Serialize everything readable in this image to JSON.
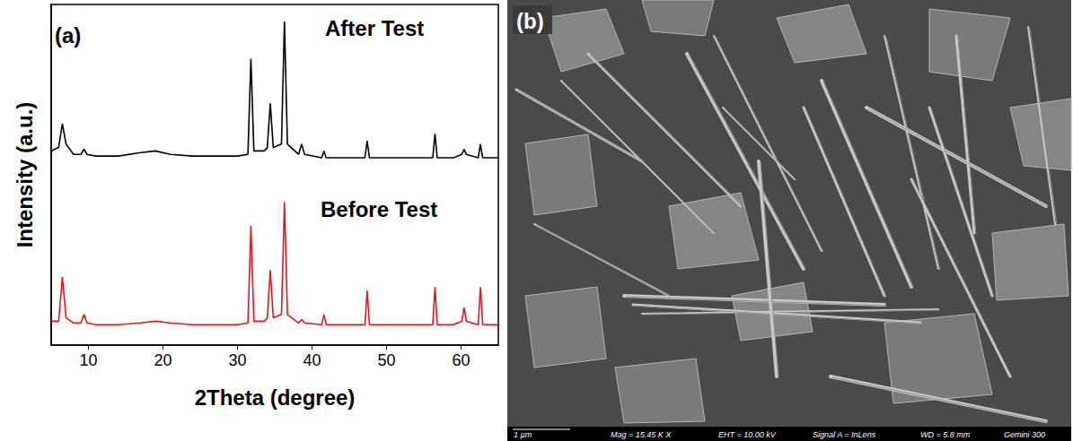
{
  "chart_data": {
    "type": "line",
    "panel_label": "(a)",
    "xlabel": "2Theta (degree)",
    "ylabel": "Intensity (a.u.)",
    "x": [
      5,
      6,
      6.5,
      7,
      8,
      9,
      9.4,
      9.8,
      11,
      14,
      17,
      19,
      21,
      24,
      28,
      30,
      31.4,
      31.8,
      32.2,
      33.6,
      34.0,
      34.4,
      34.8,
      35.9,
      36.3,
      36.7,
      38.2,
      38.6,
      39.0,
      41.3,
      41.6,
      41.9,
      44,
      47.1,
      47.4,
      47.7,
      52,
      56.2,
      56.5,
      56.8,
      59,
      60.1,
      60.4,
      60.7,
      62.3,
      62.6,
      62.9,
      64,
      65
    ],
    "series": [
      {
        "name": "After Test",
        "color": "#000000",
        "values": [
          57,
          58,
          65,
          59,
          56,
          56,
          57.5,
          56,
          55.5,
          55.5,
          56.5,
          57,
          56,
          55.5,
          55.5,
          55.5,
          56,
          84,
          57,
          57,
          58,
          71,
          58,
          59,
          95,
          59,
          56,
          59,
          56,
          55,
          57,
          55,
          55,
          55,
          60,
          55,
          55,
          55,
          62,
          55,
          55,
          56,
          57.5,
          56,
          55,
          59,
          55,
          55,
          55
        ]
      },
      {
        "name": "Before Test",
        "color": "#e8141b",
        "values": [
          7,
          7,
          20,
          8,
          6.5,
          6.5,
          9,
          6.5,
          6,
          6,
          6.5,
          7,
          6.5,
          6,
          6,
          6,
          6.5,
          35,
          7,
          7,
          8,
          22,
          8,
          9,
          42,
          9,
          6.5,
          7.5,
          6.5,
          6,
          9,
          6,
          6,
          6,
          16,
          6,
          6,
          6,
          17,
          6,
          6,
          7,
          11,
          7,
          6,
          17,
          6,
          6,
          6
        ]
      }
    ],
    "xlim": [
      5,
      65
    ],
    "xticks": [
      10,
      20,
      30,
      40,
      50,
      60
    ],
    "ylim": [
      0,
      100
    ],
    "tick_labels": "x",
    "grid": false
  },
  "image_panel": {
    "panel_label": "(b)",
    "scale_bar": "1 µm",
    "info": [
      "Mag = 15.45 K X",
      "EHT = 10.00 kV",
      "Signal A = InLens",
      "WD = 5.8 mm",
      "Gemini 300"
    ]
  }
}
